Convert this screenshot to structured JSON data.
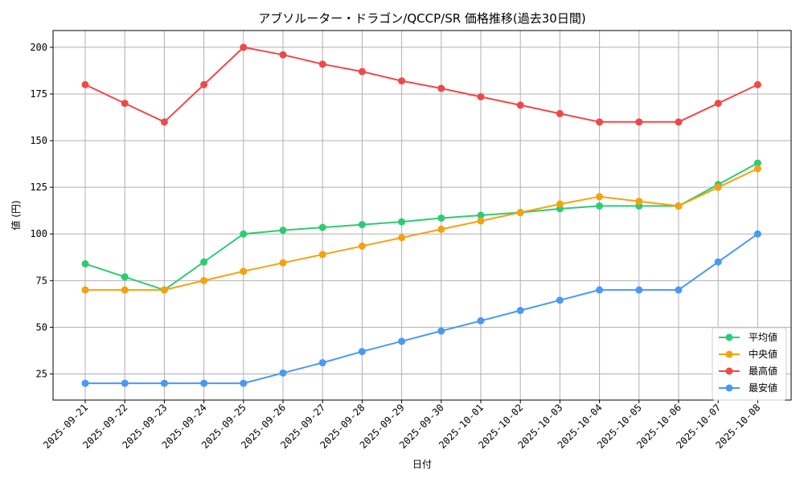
{
  "chart_data": {
    "type": "line",
    "title": "アブソルーター・ドラゴン/QCCP/SR 価格推移(過去30日間)",
    "xlabel": "日付",
    "ylabel": "値 (円)",
    "ylim": [
      11,
      209
    ],
    "yticks": [
      25,
      50,
      75,
      100,
      125,
      150,
      175,
      200
    ],
    "grid": true,
    "legend_position": "bottom-right",
    "categories": [
      "2025-09-21",
      "2025-09-22",
      "2025-09-23",
      "2025-09-24",
      "2025-09-25",
      "2025-09-26",
      "2025-09-27",
      "2025-09-28",
      "2025-09-29",
      "2025-09-30",
      "2025-10-01",
      "2025-10-02",
      "2025-10-03",
      "2025-10-04",
      "2025-10-05",
      "2025-10-06",
      "2025-10-07",
      "2025-10-08"
    ],
    "series": [
      {
        "name": "平均値",
        "color": "#2ecc71",
        "values": [
          84,
          77,
          70,
          85,
          100,
          102,
          103.5,
          105,
          106.5,
          108.5,
          110,
          111.5,
          113.5,
          115,
          115,
          115,
          126.5,
          138
        ]
      },
      {
        "name": "中央値",
        "color": "#f5a20f",
        "values": [
          70,
          70,
          70,
          75,
          80,
          84.5,
          89,
          93.5,
          98,
          102.5,
          107,
          111.5,
          116,
          120,
          117.5,
          115,
          125,
          135
        ]
      },
      {
        "name": "最高値",
        "color": "#f04848",
        "values": [
          180,
          170,
          160,
          180,
          200,
          196,
          191,
          187,
          182,
          178,
          173.5,
          169,
          164.5,
          160,
          160,
          160,
          170,
          180
        ]
      },
      {
        "name": "最安値",
        "color": "#4a99f2",
        "values": [
          20,
          20,
          20,
          20,
          20,
          25.5,
          31,
          37,
          42.5,
          48,
          53.5,
          59,
          64.5,
          70,
          70,
          70,
          85,
          100
        ]
      }
    ]
  }
}
